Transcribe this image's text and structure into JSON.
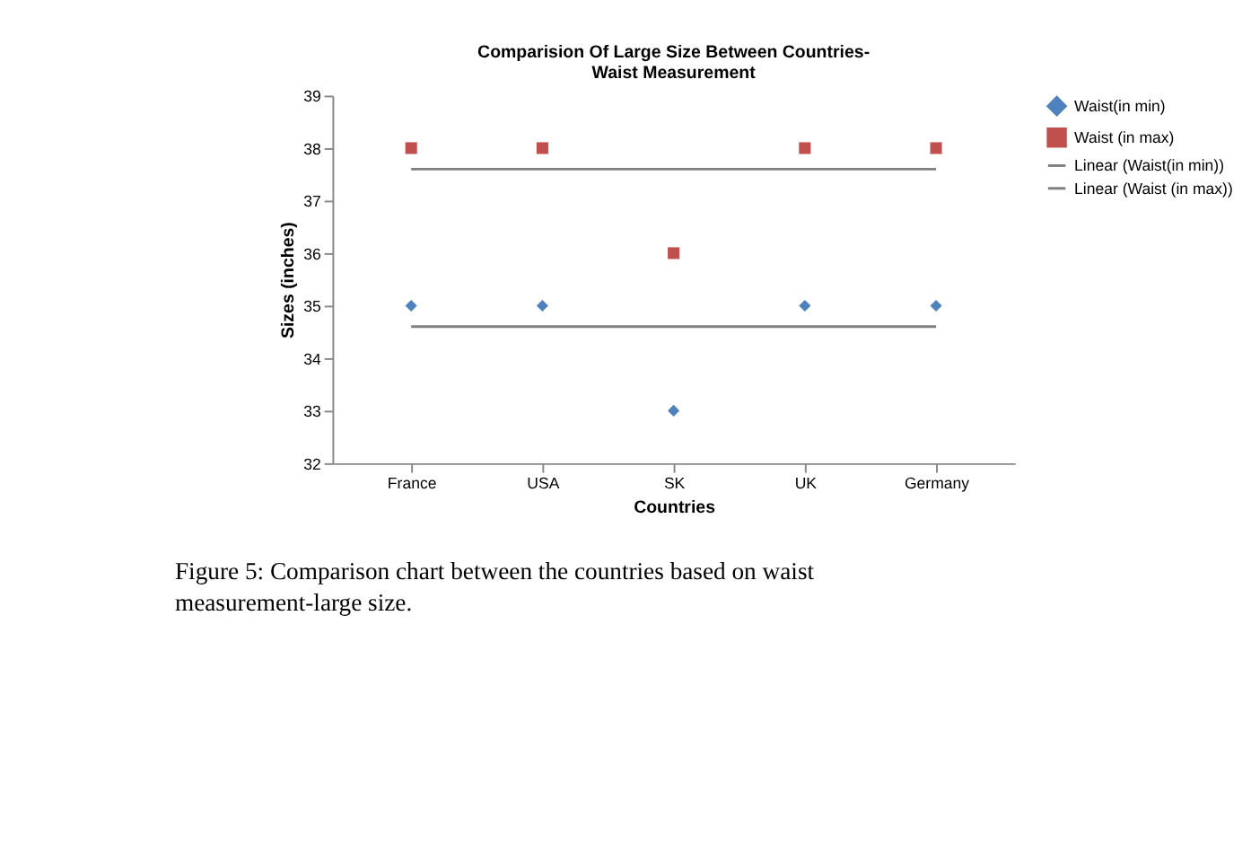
{
  "chart_data": {
    "type": "scatter",
    "title": "Comparision Of Large Size Between Countries-\nWaist Measurement",
    "xlabel": "Countries",
    "ylabel": "Sizes (inches)",
    "categories": [
      "France",
      "USA",
      "SK",
      "UK",
      "Germany"
    ],
    "series": [
      {
        "name": "Waist(in min)",
        "marker": "diamond",
        "color": "#4f81bd",
        "values": [
          35,
          35,
          33,
          35,
          35
        ]
      },
      {
        "name": "Waist (in max)",
        "marker": "square",
        "color": "#c0504d",
        "values": [
          38,
          38,
          36,
          38,
          38
        ]
      },
      {
        "name": "Linear (Waist(in min))",
        "type": "line",
        "color": "#7f7f7f",
        "values": [
          34.6,
          34.6,
          34.6,
          34.6,
          34.6
        ]
      },
      {
        "name": "Linear (Waist (in max))",
        "type": "line",
        "color": "#7f7f7f",
        "values": [
          37.6,
          37.6,
          37.6,
          37.6,
          37.6
        ]
      }
    ],
    "ylim": [
      32,
      39
    ],
    "yticks": [
      32,
      33,
      34,
      35,
      36,
      37,
      38,
      39
    ],
    "grid": false,
    "legend": "right",
    "annotations": [
      "Figure 5: Comparison chart between the countries based on waist measurement-large size."
    ]
  }
}
